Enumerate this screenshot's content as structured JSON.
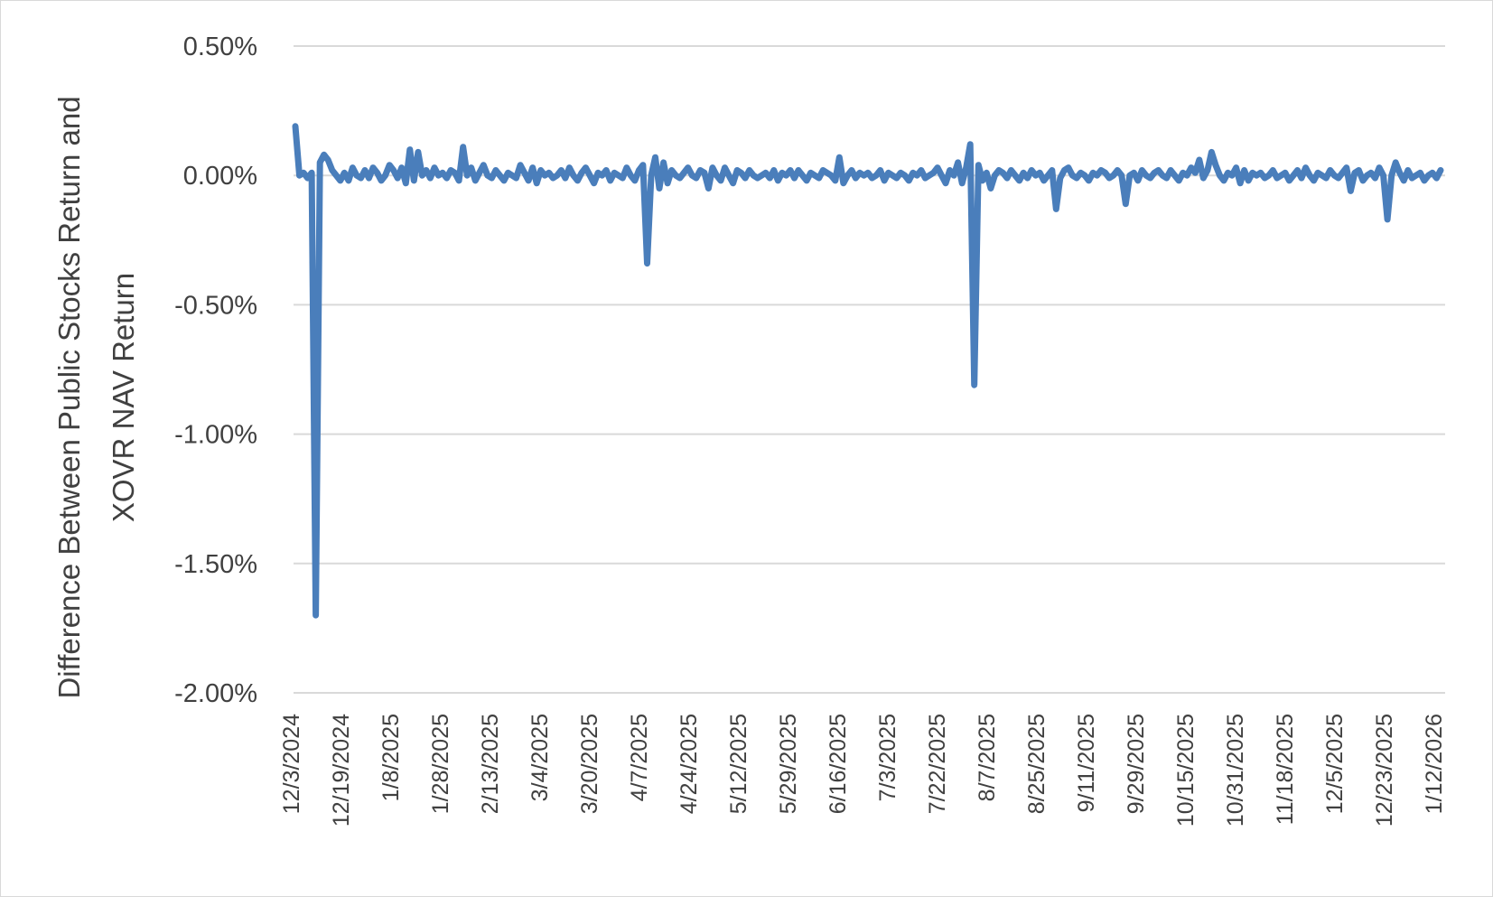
{
  "chart_data": {
    "type": "line",
    "title": "",
    "xlabel": "",
    "ylabel_lines": [
      "Difference Between Public Stocks Return and",
      "XOVR NAV Return"
    ],
    "y_ticks": [
      "0.50%",
      "0.00%",
      "-0.50%",
      "-1.00%",
      "-1.50%",
      "-2.00%"
    ],
    "y_tick_values": [
      0.5,
      0.0,
      -0.5,
      -1.0,
      -1.5,
      -2.0
    ],
    "ylim": [
      -2.0,
      0.5
    ],
    "x_ticks": [
      "12/3/2024",
      "12/19/2024",
      "1/8/2025",
      "1/28/2025",
      "2/13/2025",
      "3/4/2025",
      "3/20/2025",
      "4/7/2025",
      "4/24/2025",
      "5/12/2025",
      "5/29/2025",
      "6/16/2025",
      "7/3/2025",
      "7/22/2025",
      "8/7/2025",
      "8/25/2025",
      "9/11/2025",
      "9/29/2025",
      "10/15/2025",
      "10/31/2025",
      "11/18/2025",
      "12/5/2025",
      "12/23/2025",
      "1/12/2026"
    ],
    "grid": true,
    "series_color": "#4a7ebb",
    "series": [
      {
        "name": "",
        "values": [
          0.19,
          0.0,
          0.01,
          -0.01,
          0.01,
          -1.7,
          0.05,
          0.08,
          0.06,
          0.02,
          0.0,
          -0.02,
          0.01,
          -0.02,
          0.03,
          0.0,
          -0.01,
          0.02,
          -0.01,
          0.03,
          0.01,
          -0.02,
          0.0,
          0.04,
          0.02,
          -0.01,
          0.03,
          -0.03,
          0.1,
          -0.02,
          0.09,
          0.0,
          0.02,
          -0.01,
          0.03,
          0.0,
          0.01,
          -0.01,
          0.02,
          0.01,
          -0.02,
          0.11,
          0.0,
          0.03,
          -0.02,
          0.01,
          0.04,
          0.0,
          -0.01,
          0.02,
          0.0,
          -0.02,
          0.01,
          0.0,
          -0.01,
          0.04,
          0.01,
          -0.02,
          0.03,
          -0.03,
          0.02,
          0.0,
          0.01,
          -0.01,
          0.0,
          0.02,
          -0.01,
          0.03,
          0.0,
          -0.02,
          0.01,
          0.03,
          0.0,
          -0.03,
          0.01,
          0.0,
          0.02,
          -0.02,
          0.01,
          0.0,
          -0.01,
          0.03,
          0.0,
          -0.02,
          0.02,
          0.04,
          -0.34,
          0.0,
          0.07,
          -0.05,
          0.05,
          -0.03,
          0.02,
          0.0,
          -0.01,
          0.01,
          0.03,
          0.0,
          -0.01,
          0.02,
          0.01,
          -0.05,
          0.03,
          0.0,
          -0.02,
          0.03,
          0.0,
          -0.03,
          0.02,
          0.01,
          -0.01,
          0.02,
          0.0,
          -0.01,
          0.0,
          0.01,
          -0.01,
          0.02,
          -0.02,
          0.01,
          0.0,
          0.02,
          -0.01,
          0.02,
          0.0,
          -0.02,
          0.01,
          0.0,
          -0.01,
          0.02,
          0.01,
          0.0,
          -0.02,
          0.07,
          -0.03,
          0.0,
          0.02,
          -0.01,
          0.01,
          0.0,
          0.01,
          -0.01,
          0.0,
          0.02,
          -0.02,
          0.01,
          0.0,
          -0.01,
          0.01,
          0.0,
          -0.02,
          0.01,
          0.0,
          0.02,
          -0.01,
          0.0,
          0.01,
          0.03,
          0.0,
          -0.03,
          0.02,
          0.0,
          0.05,
          -0.03,
          0.03,
          0.12,
          -0.81,
          0.04,
          -0.02,
          0.01,
          -0.05,
          0.0,
          0.02,
          0.01,
          -0.01,
          0.02,
          0.0,
          -0.02,
          0.01,
          -0.01,
          0.02,
          0.0,
          0.01,
          -0.02,
          0.0,
          0.02,
          -0.13,
          -0.01,
          0.02,
          0.03,
          0.0,
          -0.01,
          0.01,
          0.0,
          -0.02,
          0.01,
          0.0,
          0.02,
          0.01,
          -0.01,
          0.0,
          0.02,
          0.0,
          -0.11,
          0.0,
          0.01,
          -0.02,
          0.02,
          0.0,
          -0.01,
          0.01,
          0.02,
          0.0,
          -0.01,
          0.02,
          0.0,
          -0.02,
          0.01,
          0.0,
          0.03,
          0.01,
          0.06,
          -0.01,
          0.02,
          0.09,
          0.04,
          0.0,
          -0.02,
          0.01,
          0.0,
          0.03,
          -0.03,
          0.02,
          -0.02,
          0.01,
          0.0,
          0.01,
          -0.01,
          0.0,
          0.02,
          -0.01,
          0.0,
          0.01,
          -0.02,
          0.0,
          0.02,
          -0.01,
          0.03,
          0.0,
          -0.02,
          0.01,
          0.0,
          -0.01,
          0.02,
          0.0,
          -0.01,
          0.01,
          0.03,
          -0.06,
          0.01,
          0.02,
          -0.02,
          0.0,
          0.01,
          -0.01,
          0.03,
          0.0,
          -0.17,
          0.0,
          0.05,
          0.01,
          -0.02,
          0.02,
          -0.01,
          0.0,
          0.01,
          -0.02,
          0.0,
          0.01,
          -0.01,
          0.02
        ]
      }
    ]
  }
}
